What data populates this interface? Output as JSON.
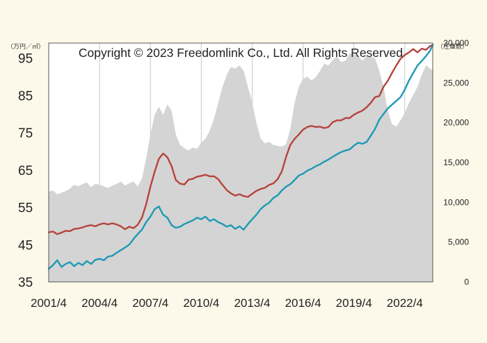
{
  "chart_data": {
    "type": "line",
    "copyright": "Copyright © 2023 Freedomlink Co., Ltd. All Rights Reserved",
    "left_axis": {
      "unit": "（万円／㎡）",
      "ticks": [
        35,
        45,
        55,
        65,
        75,
        85,
        95
      ],
      "ylim": [
        35,
        99
      ]
    },
    "right_axis": {
      "unit": "（在庫数）",
      "ticks": [
        "0",
        "5,000",
        "10,000",
        "15,000",
        "20,000",
        "25,000",
        "30,000"
      ],
      "tick_values": [
        0,
        5000,
        10000,
        15000,
        20000,
        25000,
        30000
      ],
      "ylim": [
        0,
        30000
      ]
    },
    "x_ticks": [
      "2001/4",
      "2004/4",
      "2007/4",
      "2010/4",
      "2013/4",
      "2016/4",
      "2019/4",
      "2022/4"
    ],
    "x_tick_years": [
      2001.25,
      2004.25,
      2007.25,
      2010.25,
      2013.25,
      2016.25,
      2019.25,
      2022.25
    ],
    "xlim": [
      2001.25,
      2023.9
    ],
    "grid": "vertical",
    "series": [
      {
        "name": "",
        "kind": "area",
        "axis": "right",
        "color": "#d4d4d4",
        "x": [
          2001.25,
          2001.5,
          2001.75,
          2002.0,
          2002.25,
          2002.5,
          2002.75,
          2003.0,
          2003.25,
          2003.5,
          2003.75,
          2004.0,
          2004.25,
          2004.5,
          2004.75,
          2005.0,
          2005.25,
          2005.5,
          2005.75,
          2006.0,
          2006.25,
          2006.5,
          2006.75,
          2007.0,
          2007.25,
          2007.5,
          2007.75,
          2008.0,
          2008.25,
          2008.5,
          2008.75,
          2009.0,
          2009.25,
          2009.5,
          2009.75,
          2010.0,
          2010.25,
          2010.5,
          2010.75,
          2011.0,
          2011.25,
          2011.5,
          2011.75,
          2012.0,
          2012.25,
          2012.5,
          2012.75,
          2013.0,
          2013.25,
          2013.5,
          2013.75,
          2014.0,
          2014.25,
          2014.5,
          2014.75,
          2015.0,
          2015.25,
          2015.5,
          2015.75,
          2016.0,
          2016.25,
          2016.5,
          2016.75,
          2017.0,
          2017.25,
          2017.5,
          2017.75,
          2018.0,
          2018.25,
          2018.5,
          2018.75,
          2019.0,
          2019.25,
          2019.5,
          2019.75,
          2020.0,
          2020.25,
          2020.5,
          2020.75,
          2021.0,
          2021.25,
          2021.5,
          2021.75,
          2022.0,
          2022.25,
          2022.5,
          2022.75,
          2023.0,
          2023.25,
          2023.5,
          2023.75,
          2023.9
        ],
        "values": [
          11300,
          11500,
          11000,
          11200,
          11400,
          11700,
          12200,
          12000,
          12300,
          12500,
          11900,
          12300,
          12200,
          12000,
          11800,
          12100,
          12300,
          12600,
          12100,
          12400,
          12600,
          12000,
          13000,
          15500,
          18500,
          21000,
          22000,
          21000,
          22300,
          21500,
          18500,
          17200,
          16800,
          16500,
          16900,
          16700,
          17500,
          18000,
          19000,
          20500,
          22500,
          24500,
          26000,
          27000,
          26800,
          27200,
          26500,
          24500,
          22500,
          20000,
          18000,
          17400,
          17600,
          17200,
          17100,
          17000,
          17300,
          19200,
          22500,
          24500,
          25500,
          25800,
          25300,
          25700,
          26500,
          27400,
          27200,
          27900,
          28300,
          27600,
          27800,
          28700,
          28600,
          28400,
          27800,
          28400,
          28300,
          28100,
          26500,
          24500,
          21500,
          19800,
          19500,
          20300,
          21200,
          22500,
          23500,
          24500,
          26000,
          27200,
          26800,
          26500
        ]
      },
      {
        "name": "",
        "kind": "line",
        "axis": "left",
        "color": "#b5433d",
        "x": [
          2001.25,
          2001.5,
          2001.75,
          2002.0,
          2002.25,
          2002.5,
          2002.75,
          2003.0,
          2003.25,
          2003.5,
          2003.75,
          2004.0,
          2004.25,
          2004.5,
          2004.75,
          2005.0,
          2005.25,
          2005.5,
          2005.75,
          2006.0,
          2006.25,
          2006.5,
          2006.75,
          2007.0,
          2007.25,
          2007.5,
          2007.75,
          2008.0,
          2008.25,
          2008.5,
          2008.75,
          2009.0,
          2009.25,
          2009.5,
          2009.75,
          2010.0,
          2010.25,
          2010.5,
          2010.75,
          2011.0,
          2011.25,
          2011.5,
          2011.75,
          2012.0,
          2012.25,
          2012.5,
          2012.75,
          2013.0,
          2013.25,
          2013.5,
          2013.75,
          2014.0,
          2014.25,
          2014.5,
          2014.75,
          2015.0,
          2015.25,
          2015.5,
          2015.75,
          2016.0,
          2016.25,
          2016.5,
          2016.75,
          2017.0,
          2017.25,
          2017.5,
          2017.75,
          2018.0,
          2018.25,
          2018.5,
          2018.75,
          2019.0,
          2019.25,
          2019.5,
          2019.75,
          2020.0,
          2020.25,
          2020.5,
          2020.75,
          2021.0,
          2021.25,
          2021.5,
          2021.75,
          2022.0,
          2022.25,
          2022.5,
          2022.75,
          2023.0,
          2023.25,
          2023.5,
          2023.75,
          2023.9
        ],
        "values": [
          48.3,
          48.5,
          47.8,
          48.2,
          48.7,
          48.6,
          49.2,
          49.3,
          49.6,
          50.0,
          50.2,
          49.9,
          50.4,
          50.7,
          50.4,
          50.7,
          50.4,
          49.9,
          49.1,
          49.8,
          49.4,
          50.3,
          52.2,
          55.8,
          60.5,
          64.5,
          68.0,
          69.4,
          68.4,
          66.0,
          62.3,
          61.3,
          61.1,
          62.4,
          62.6,
          63.2,
          63.4,
          63.7,
          63.3,
          63.3,
          62.5,
          61.0,
          59.6,
          58.7,
          58.1,
          58.5,
          58.0,
          57.8,
          58.6,
          59.4,
          59.9,
          60.2,
          61.0,
          61.4,
          62.5,
          64.6,
          68.5,
          71.7,
          73.3,
          74.5,
          75.8,
          76.5,
          76.8,
          76.5,
          76.6,
          76.2,
          76.5,
          77.8,
          78.3,
          78.3,
          78.9,
          78.9,
          79.8,
          80.4,
          80.9,
          81.8,
          83.0,
          84.5,
          84.8,
          87.3,
          88.9,
          91.0,
          93.0,
          94.8,
          95.8,
          96.5,
          97.4,
          96.5,
          97.5,
          97.2,
          98.2,
          98.5
        ]
      },
      {
        "name": "",
        "kind": "line",
        "axis": "left",
        "color": "#1d9ab5",
        "x": [
          2001.25,
          2001.5,
          2001.75,
          2002.0,
          2002.25,
          2002.5,
          2002.75,
          2003.0,
          2003.25,
          2003.5,
          2003.75,
          2004.0,
          2004.25,
          2004.5,
          2004.75,
          2005.0,
          2005.25,
          2005.5,
          2005.75,
          2006.0,
          2006.25,
          2006.5,
          2006.75,
          2007.0,
          2007.25,
          2007.5,
          2007.75,
          2008.0,
          2008.25,
          2008.5,
          2008.75,
          2009.0,
          2009.25,
          2009.5,
          2009.75,
          2010.0,
          2010.25,
          2010.5,
          2010.75,
          2011.0,
          2011.25,
          2011.5,
          2011.75,
          2012.0,
          2012.25,
          2012.5,
          2012.75,
          2013.0,
          2013.25,
          2013.5,
          2013.75,
          2014.0,
          2014.25,
          2014.5,
          2014.75,
          2015.0,
          2015.25,
          2015.5,
          2015.75,
          2016.0,
          2016.25,
          2016.5,
          2016.75,
          2017.0,
          2017.25,
          2017.5,
          2017.75,
          2018.0,
          2018.25,
          2018.5,
          2018.75,
          2019.0,
          2019.25,
          2019.5,
          2019.75,
          2020.0,
          2020.25,
          2020.5,
          2020.75,
          2021.0,
          2021.25,
          2021.5,
          2021.75,
          2022.0,
          2022.25,
          2022.5,
          2022.75,
          2023.0,
          2023.25,
          2023.5,
          2023.75,
          2023.9
        ],
        "values": [
          38.5,
          39.5,
          40.8,
          39.0,
          39.8,
          40.3,
          39.2,
          40.1,
          39.5,
          40.6,
          39.8,
          40.9,
          41.2,
          40.8,
          41.8,
          42.0,
          42.8,
          43.5,
          44.2,
          45.0,
          46.5,
          47.8,
          49.0,
          51.0,
          52.5,
          54.5,
          55.2,
          53.0,
          52.2,
          50.2,
          49.5,
          49.8,
          50.5,
          51.0,
          51.5,
          52.2,
          51.8,
          52.5,
          51.3,
          51.8,
          51.0,
          50.5,
          49.8,
          50.2,
          49.2,
          49.9,
          49.0,
          50.5,
          51.8,
          53.0,
          54.5,
          55.5,
          56.2,
          57.5,
          58.2,
          59.5,
          60.5,
          61.2,
          62.3,
          63.5,
          64.0,
          64.8,
          65.3,
          66.0,
          66.5,
          67.2,
          67.8,
          68.5,
          69.2,
          69.8,
          70.2,
          70.5,
          71.5,
          72.3,
          72.0,
          72.5,
          74.2,
          76.0,
          78.5,
          80.0,
          81.5,
          82.5,
          83.5,
          84.5,
          86.5,
          89.0,
          91.0,
          93.0,
          94.2,
          95.5,
          97.0,
          98.5
        ]
      }
    ]
  }
}
